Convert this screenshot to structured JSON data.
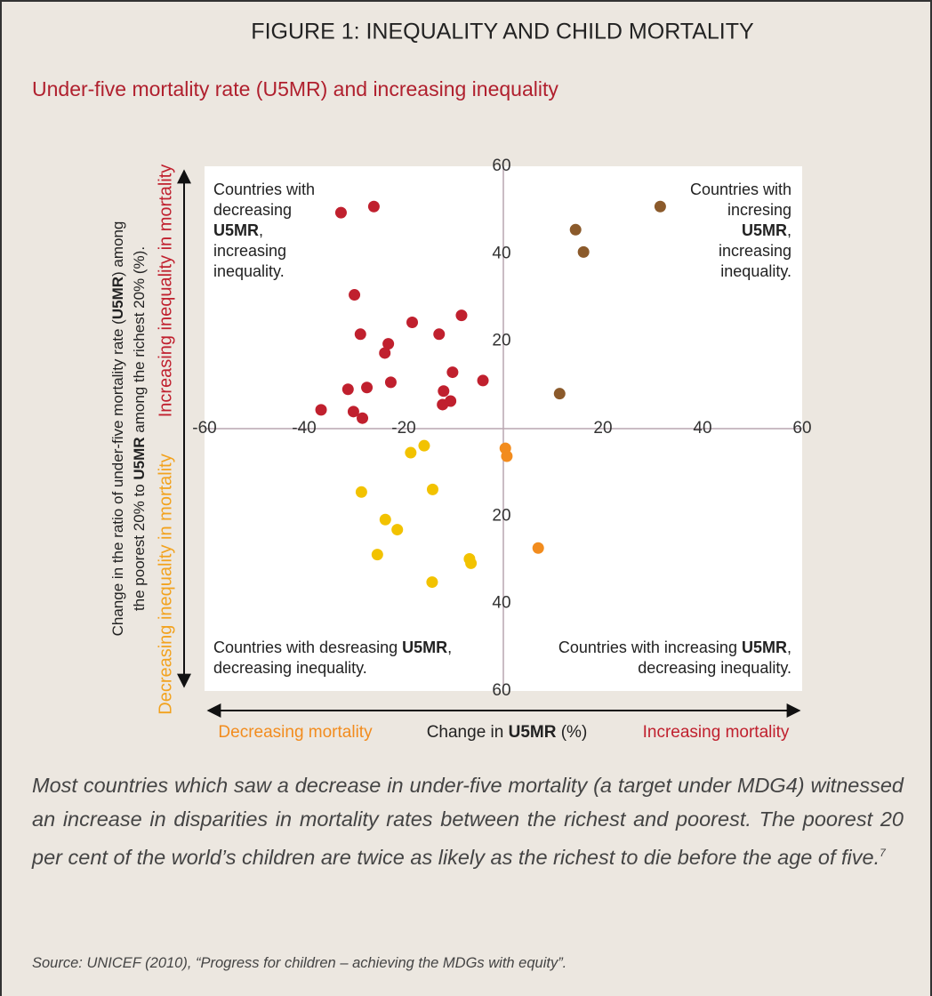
{
  "chart_data": {
    "type": "scatter",
    "title": "FIGURE 1: INEQUALITY AND CHILD MORTALITY",
    "subtitle": "Under-five mortality rate (U5MR) and increasing inequality",
    "xlim": [
      -60,
      60
    ],
    "ylim": [
      -60,
      60
    ],
    "xticks": [
      -60,
      -40,
      -20,
      20,
      40,
      60
    ],
    "yticks": [
      60,
      40,
      20,
      {
        "value": -20,
        "label": "20"
      },
      {
        "value": -40,
        "label": "40"
      },
      {
        "value": -60,
        "label": "60"
      }
    ],
    "x_label": [
      "Change in ",
      {
        "text": "U5MR",
        "bold": true
      },
      " (%)"
    ],
    "y_label": [
      [
        "Change in the ratio of under-five mortality rate (",
        {
          "text": "U5MR",
          "bold": true
        },
        ") among"
      ],
      [
        "the poorest 20% to ",
        {
          "text": "U5MR",
          "bold": true
        },
        " among the richest 20% (%)."
      ]
    ],
    "x_arrow_labels": {
      "left": "Decreasing mortality",
      "right": "Increasing mortality"
    },
    "y_arrow_labels": {
      "top": "Increasing inequality in mortality",
      "bottom": "Decreasing inequality in mortality"
    },
    "annotations": [
      {
        "corner": "top-left",
        "lines": [
          [
            "Countries with"
          ],
          [
            "decreasing"
          ],
          [
            {
              "text": "U5MR",
              "bold": true
            },
            ","
          ],
          [
            "increasing"
          ],
          [
            "inequality."
          ]
        ]
      },
      {
        "corner": "top-right",
        "lines": [
          [
            "Countries with"
          ],
          [
            "incresing"
          ],
          [
            {
              "text": "U5MR",
              "bold": true
            },
            ","
          ],
          [
            "increasing"
          ],
          [
            "inequality."
          ]
        ]
      },
      {
        "corner": "bottom-left",
        "lines": [
          [
            "Countries with desreasing ",
            {
              "text": "U5MR",
              "bold": true
            },
            ","
          ],
          [
            "decreasing inequality."
          ]
        ]
      },
      {
        "corner": "bottom-right",
        "lines": [
          [
            "Countries with increasing ",
            {
              "text": "U5MR",
              "bold": true
            },
            ","
          ],
          [
            "decreasing inequality."
          ]
        ]
      }
    ],
    "series": [
      {
        "color": "#c0202e",
        "x": [
          -32.6,
          -26.0,
          -29.9,
          -28.7,
          -23.1,
          -23.8,
          -18.3,
          -12.9,
          -8.4,
          -10.2,
          -4.1,
          -22.6,
          -27.4,
          -31.2,
          -12.0,
          -10.6,
          -12.2,
          -36.6,
          -30.1,
          -28.3
        ],
        "values": [
          49.4,
          50.8,
          30.6,
          21.6,
          19.4,
          17.3,
          24.3,
          21.6,
          25.9,
          12.9,
          11.0,
          10.6,
          9.4,
          9.0,
          8.6,
          6.3,
          5.5,
          4.3,
          3.9,
          2.4
        ]
      },
      {
        "color": "#8b5a2b",
        "x": [
          31.5,
          14.5,
          16.1,
          11.3
        ],
        "values": [
          50.8,
          45.5,
          40.4,
          8.0
        ]
      },
      {
        "color": "#f28c1e",
        "x": [
          0.4,
          0.7,
          7.0
        ],
        "values": [
          -4.5,
          -6.3,
          -27.3
        ]
      },
      {
        "color": "#f2c200",
        "x": [
          -15.9,
          -18.6,
          -28.5,
          -14.2,
          -23.7,
          -21.3,
          -25.3,
          -6.8,
          -6.5,
          -14.3
        ],
        "values": [
          -3.9,
          -5.5,
          -14.5,
          -13.9,
          -20.8,
          -23.1,
          -28.8,
          -29.8,
          -30.8,
          -35.1
        ]
      }
    ]
  },
  "caption": {
    "text": "Most countries which saw a decrease in under-five mortality (a target under MDG4) witnessed an increase in disparities in mortality rates between the richest and poorest. The poorest 20 per cent of the world’s children are twice as likely as the richest to die before the age of five.",
    "footnote": "7"
  },
  "source": "Source: UNICEF (2010), “Progress for children – achieving the MDGs with equity”."
}
